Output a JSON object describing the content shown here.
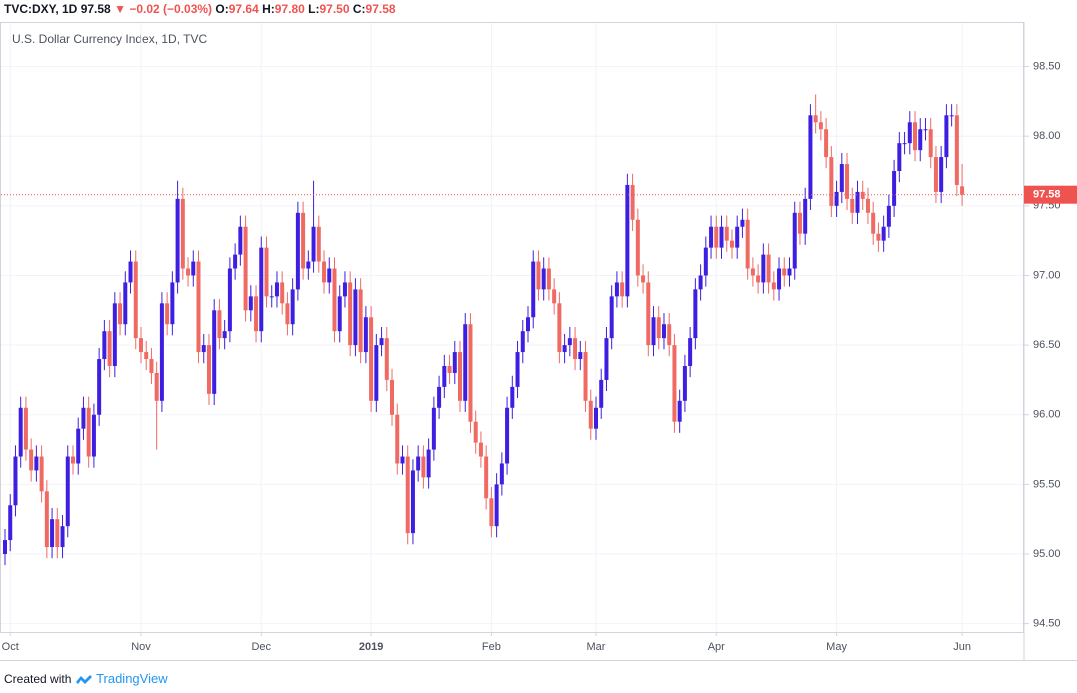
{
  "header": {
    "symbol": "TVC:DXY, 1D",
    "price": "97.58",
    "arrow": "▼",
    "change": "−0.02 (−0.03%)",
    "fields": [
      {
        "label": "O:",
        "value": "97.64"
      },
      {
        "label": "H:",
        "value": "97.80"
      },
      {
        "label": "L:",
        "value": "97.50"
      },
      {
        "label": "C:",
        "value": "97.58"
      }
    ]
  },
  "footer": {
    "text": "Created with",
    "brand": "TradingView"
  },
  "chart_data": {
    "type": "candlestick",
    "title": "U.S. Dollar Currency Index, 1D, TVC",
    "up_color": "#3c1fe0",
    "down_color": "#ef6a62",
    "grid": true,
    "ylim": [
      94.44,
      98.82
    ],
    "yticks": [
      {
        "value": 94.5,
        "label": "94.50"
      },
      {
        "value": 95,
        "label": "95.00"
      },
      {
        "value": 95.5,
        "label": "95.50"
      },
      {
        "value": 96,
        "label": "96.00"
      },
      {
        "value": 96.5,
        "label": "96.50"
      },
      {
        "value": 97,
        "label": "97.00"
      },
      {
        "value": 97.5,
        "label": "97.50"
      },
      {
        "value": 98,
        "label": "98.00"
      },
      {
        "value": 98.5,
        "label": "98.50"
      }
    ],
    "last_price": 97.58,
    "last_price_color": "#ef5350",
    "categories": [
      null,
      "Oct",
      null,
      null,
      null,
      null,
      null,
      null,
      null,
      null,
      null,
      null,
      null,
      null,
      null,
      null,
      null,
      null,
      null,
      null,
      null,
      null,
      null,
      null,
      null,
      null,
      "Nov",
      null,
      null,
      null,
      null,
      null,
      null,
      null,
      null,
      null,
      null,
      null,
      null,
      null,
      null,
      null,
      null,
      null,
      null,
      null,
      null,
      null,
      null,
      "Dec",
      null,
      null,
      null,
      null,
      null,
      null,
      null,
      null,
      null,
      null,
      null,
      null,
      null,
      null,
      null,
      null,
      null,
      null,
      null,
      null,
      "2019",
      null,
      null,
      null,
      null,
      null,
      null,
      null,
      null,
      null,
      null,
      null,
      null,
      null,
      null,
      null,
      null,
      null,
      null,
      null,
      null,
      null,
      null,
      "Feb",
      null,
      null,
      null,
      null,
      null,
      null,
      null,
      null,
      null,
      null,
      null,
      null,
      null,
      null,
      null,
      null,
      null,
      null,
      null,
      "Mar",
      null,
      null,
      null,
      null,
      null,
      null,
      null,
      null,
      null,
      null,
      null,
      null,
      null,
      null,
      null,
      null,
      null,
      null,
      null,
      null,
      null,
      null,
      "Apr",
      null,
      null,
      null,
      null,
      null,
      null,
      null,
      null,
      null,
      null,
      null,
      null,
      null,
      null,
      null,
      null,
      null,
      null,
      null,
      null,
      null,
      null,
      "May",
      null,
      null,
      null,
      null,
      null,
      null,
      null,
      null,
      null,
      null,
      null,
      null,
      null,
      null,
      null,
      null,
      null,
      null,
      null,
      null,
      null,
      null,
      null,
      "Jun"
    ],
    "ohlc": [
      [
        95.0,
        95.18,
        94.92,
        95.1
      ],
      [
        95.1,
        95.43,
        95.02,
        95.35
      ],
      [
        95.35,
        95.78,
        95.27,
        95.7
      ],
      [
        95.7,
        96.13,
        95.62,
        96.05
      ],
      [
        96.05,
        96.13,
        95.67,
        95.75
      ],
      [
        95.75,
        95.83,
        95.52,
        95.6
      ],
      [
        95.6,
        95.78,
        95.52,
        95.7
      ],
      [
        95.7,
        95.78,
        95.37,
        95.45
      ],
      [
        95.45,
        95.53,
        94.97,
        95.05
      ],
      [
        95.05,
        95.33,
        94.97,
        95.25
      ],
      [
        95.25,
        95.33,
        94.97,
        95.05
      ],
      [
        95.05,
        95.28,
        94.97,
        95.2
      ],
      [
        95.2,
        95.78,
        95.12,
        95.7
      ],
      [
        95.7,
        95.78,
        95.57,
        95.65
      ],
      [
        95.65,
        95.98,
        95.57,
        95.9
      ],
      [
        95.9,
        96.13,
        95.82,
        96.05
      ],
      [
        96.05,
        96.13,
        95.62,
        95.7
      ],
      [
        95.7,
        96.08,
        95.62,
        96.0
      ],
      [
        96.0,
        96.48,
        95.92,
        96.4
      ],
      [
        96.4,
        96.68,
        96.32,
        96.6
      ],
      [
        96.6,
        96.68,
        96.27,
        96.35
      ],
      [
        96.35,
        96.88,
        96.27,
        96.8
      ],
      [
        96.8,
        96.88,
        96.57,
        96.65
      ],
      [
        96.65,
        97.03,
        96.57,
        96.95
      ],
      [
        96.95,
        97.18,
        96.87,
        97.1
      ],
      [
        97.1,
        97.18,
        96.47,
        96.55
      ],
      [
        96.55,
        96.63,
        96.37,
        96.45
      ],
      [
        96.45,
        96.53,
        96.32,
        96.4
      ],
      [
        96.4,
        96.48,
        96.22,
        96.3
      ],
      [
        96.3,
        96.38,
        95.75,
        96.1
      ],
      [
        96.1,
        96.88,
        96.02,
        96.8
      ],
      [
        96.8,
        96.88,
        96.57,
        96.65
      ],
      [
        96.65,
        97.03,
        96.57,
        96.95
      ],
      [
        96.95,
        97.68,
        96.87,
        97.55
      ],
      [
        97.55,
        97.63,
        96.97,
        97.05
      ],
      [
        97.05,
        97.13,
        96.92,
        97.0
      ],
      [
        97.0,
        97.18,
        96.92,
        97.1
      ],
      [
        97.1,
        97.18,
        96.37,
        96.45
      ],
      [
        96.45,
        96.58,
        96.37,
        96.5
      ],
      [
        96.5,
        96.58,
        96.07,
        96.15
      ],
      [
        96.15,
        96.83,
        96.07,
        96.75
      ],
      [
        96.75,
        96.83,
        96.47,
        96.55
      ],
      [
        96.55,
        96.68,
        96.47,
        96.6
      ],
      [
        96.6,
        97.13,
        96.52,
        97.05
      ],
      [
        97.05,
        97.23,
        96.97,
        97.15
      ],
      [
        97.15,
        97.43,
        97.07,
        97.35
      ],
      [
        97.35,
        97.43,
        96.67,
        96.75
      ],
      [
        96.75,
        96.93,
        96.67,
        96.85
      ],
      [
        96.85,
        96.93,
        96.52,
        96.6
      ],
      [
        96.6,
        97.28,
        96.52,
        97.2
      ],
      [
        97.2,
        97.28,
        96.77,
        96.85
      ],
      [
        96.85,
        96.93,
        96.77,
        96.85
      ],
      [
        96.85,
        97.03,
        96.77,
        96.95
      ],
      [
        96.95,
        97.03,
        96.72,
        96.8
      ],
      [
        96.8,
        96.88,
        96.57,
        96.65
      ],
      [
        96.65,
        96.98,
        96.57,
        96.9
      ],
      [
        96.9,
        97.53,
        96.82,
        97.45
      ],
      [
        97.45,
        97.53,
        96.97,
        97.05
      ],
      [
        97.05,
        97.18,
        96.97,
        97.1
      ],
      [
        97.1,
        97.68,
        97.02,
        97.35
      ],
      [
        97.35,
        97.43,
        97.02,
        97.1
      ],
      [
        97.1,
        97.18,
        96.87,
        96.95
      ],
      [
        96.95,
        97.13,
        96.87,
        97.05
      ],
      [
        97.05,
        97.13,
        96.52,
        96.6
      ],
      [
        96.6,
        96.93,
        96.52,
        96.85
      ],
      [
        96.85,
        97.03,
        96.77,
        96.95
      ],
      [
        96.95,
        97.03,
        96.42,
        96.5
      ],
      [
        96.5,
        96.98,
        96.42,
        96.9
      ],
      [
        96.9,
        96.98,
        96.37,
        96.45
      ],
      [
        96.45,
        96.78,
        96.37,
        96.7
      ],
      [
        96.7,
        96.78,
        96.02,
        96.1
      ],
      [
        96.1,
        96.58,
        96.02,
        96.5
      ],
      [
        96.5,
        96.63,
        96.42,
        96.55
      ],
      [
        96.55,
        96.63,
        96.17,
        96.25
      ],
      [
        96.25,
        96.33,
        95.92,
        96.0
      ],
      [
        96.0,
        96.08,
        95.57,
        95.65
      ],
      [
        95.65,
        95.78,
        95.57,
        95.7
      ],
      [
        95.7,
        95.78,
        95.07,
        95.15
      ],
      [
        95.15,
        95.68,
        95.07,
        95.6
      ],
      [
        95.6,
        95.78,
        95.52,
        95.7
      ],
      [
        95.7,
        95.78,
        95.47,
        95.55
      ],
      [
        95.55,
        95.83,
        95.47,
        95.75
      ],
      [
        95.75,
        96.13,
        95.67,
        96.05
      ],
      [
        96.05,
        96.28,
        95.97,
        96.2
      ],
      [
        96.2,
        96.43,
        96.12,
        96.35
      ],
      [
        96.35,
        96.43,
        96.22,
        96.3
      ],
      [
        96.3,
        96.53,
        96.22,
        96.45
      ],
      [
        96.45,
        96.53,
        96.02,
        96.1
      ],
      [
        96.1,
        96.73,
        96.02,
        96.65
      ],
      [
        96.65,
        96.73,
        95.87,
        95.95
      ],
      [
        95.95,
        96.03,
        95.72,
        95.8
      ],
      [
        95.8,
        95.88,
        95.62,
        95.7
      ],
      [
        95.7,
        95.78,
        95.32,
        95.4
      ],
      [
        95.4,
        95.48,
        95.12,
        95.2
      ],
      [
        95.2,
        95.58,
        95.12,
        95.5
      ],
      [
        95.5,
        95.73,
        95.42,
        95.65
      ],
      [
        95.65,
        96.13,
        95.57,
        96.05
      ],
      [
        96.05,
        96.28,
        95.97,
        96.2
      ],
      [
        96.2,
        96.53,
        96.12,
        96.45
      ],
      [
        96.45,
        96.68,
        96.37,
        96.6
      ],
      [
        96.6,
        96.78,
        96.52,
        96.7
      ],
      [
        96.7,
        97.18,
        96.62,
        97.1
      ],
      [
        97.1,
        97.18,
        96.82,
        96.9
      ],
      [
        96.9,
        97.13,
        96.82,
        97.05
      ],
      [
        97.05,
        97.13,
        96.82,
        96.9
      ],
      [
        96.9,
        96.98,
        96.72,
        96.8
      ],
      [
        96.8,
        96.88,
        96.37,
        96.45
      ],
      [
        96.45,
        96.58,
        96.37,
        96.5
      ],
      [
        96.5,
        96.63,
        96.42,
        96.55
      ],
      [
        96.55,
        96.63,
        96.32,
        96.4
      ],
      [
        96.4,
        96.53,
        96.32,
        96.45
      ],
      [
        96.45,
        96.53,
        96.02,
        96.1
      ],
      [
        96.1,
        96.18,
        95.82,
        95.9
      ],
      [
        95.9,
        96.13,
        95.82,
        96.05
      ],
      [
        96.05,
        96.33,
        95.97,
        96.25
      ],
      [
        96.25,
        96.63,
        96.17,
        96.55
      ],
      [
        96.55,
        96.93,
        96.47,
        96.85
      ],
      [
        96.85,
        97.03,
        96.77,
        96.95
      ],
      [
        96.95,
        97.03,
        96.77,
        96.85
      ],
      [
        96.85,
        97.73,
        96.77,
        97.65
      ],
      [
        97.65,
        97.73,
        97.32,
        97.4
      ],
      [
        97.4,
        97.48,
        96.92,
        97.0
      ],
      [
        97.0,
        97.08,
        96.87,
        96.95
      ],
      [
        96.95,
        97.03,
        96.42,
        96.5
      ],
      [
        96.5,
        96.78,
        96.42,
        96.7
      ],
      [
        96.7,
        96.78,
        96.47,
        96.55
      ],
      [
        96.55,
        96.73,
        96.47,
        96.65
      ],
      [
        96.65,
        96.73,
        96.42,
        96.5
      ],
      [
        96.5,
        96.58,
        95.87,
        95.95
      ],
      [
        95.95,
        96.18,
        95.87,
        96.1
      ],
      [
        96.1,
        96.43,
        96.02,
        96.35
      ],
      [
        96.35,
        96.63,
        96.27,
        96.55
      ],
      [
        96.55,
        96.98,
        96.47,
        96.9
      ],
      [
        96.9,
        97.08,
        96.82,
        97.0
      ],
      [
        97.0,
        97.28,
        96.92,
        97.2
      ],
      [
        97.2,
        97.43,
        97.12,
        97.35
      ],
      [
        97.35,
        97.43,
        97.12,
        97.2
      ],
      [
        97.2,
        97.43,
        97.12,
        97.35
      ],
      [
        97.35,
        97.43,
        97.17,
        97.25
      ],
      [
        97.25,
        97.33,
        97.12,
        97.2
      ],
      [
        97.2,
        97.43,
        97.12,
        97.35
      ],
      [
        97.35,
        97.48,
        97.27,
        97.4
      ],
      [
        97.4,
        97.48,
        96.97,
        97.05
      ],
      [
        97.05,
        97.13,
        96.92,
        97.0
      ],
      [
        97.0,
        97.08,
        96.87,
        96.95
      ],
      [
        96.95,
        97.23,
        96.87,
        97.15
      ],
      [
        97.15,
        97.23,
        96.87,
        96.95
      ],
      [
        96.95,
        97.03,
        96.82,
        96.9
      ],
      [
        96.9,
        97.13,
        96.82,
        97.05
      ],
      [
        97.05,
        97.13,
        96.92,
        97.0
      ],
      [
        97.0,
        97.13,
        96.92,
        97.05
      ],
      [
        97.05,
        97.53,
        96.97,
        97.45
      ],
      [
        97.45,
        97.53,
        97.22,
        97.3
      ],
      [
        97.3,
        97.63,
        97.22,
        97.55
      ],
      [
        97.55,
        98.23,
        97.47,
        98.15
      ],
      [
        98.15,
        98.3,
        98.02,
        98.1
      ],
      [
        98.1,
        98.18,
        97.97,
        98.05
      ],
      [
        98.05,
        98.13,
        97.77,
        97.85
      ],
      [
        97.85,
        97.93,
        97.42,
        97.5
      ],
      [
        97.5,
        97.68,
        97.42,
        97.6
      ],
      [
        97.6,
        97.88,
        97.52,
        97.8
      ],
      [
        97.8,
        97.88,
        97.47,
        97.55
      ],
      [
        97.55,
        97.63,
        97.37,
        97.45
      ],
      [
        97.45,
        97.68,
        97.37,
        97.6
      ],
      [
        97.6,
        97.68,
        97.47,
        97.55
      ],
      [
        97.55,
        97.63,
        97.37,
        97.45
      ],
      [
        97.45,
        97.53,
        97.22,
        97.3
      ],
      [
        97.3,
        97.38,
        97.17,
        97.25
      ],
      [
        97.25,
        97.43,
        97.17,
        97.35
      ],
      [
        97.35,
        97.58,
        97.27,
        97.5
      ],
      [
        97.5,
        97.83,
        97.42,
        97.75
      ],
      [
        97.75,
        98.03,
        97.67,
        97.95
      ],
      [
        97.95,
        98.03,
        97.87,
        97.95
      ],
      [
        97.95,
        98.18,
        97.87,
        98.1
      ],
      [
        98.1,
        98.18,
        97.82,
        97.9
      ],
      [
        97.9,
        98.13,
        97.82,
        98.05
      ],
      [
        98.05,
        98.13,
        97.97,
        98.05
      ],
      [
        98.05,
        98.13,
        97.77,
        97.85
      ],
      [
        97.85,
        97.93,
        97.52,
        97.6
      ],
      [
        97.6,
        97.93,
        97.52,
        97.85
      ],
      [
        97.85,
        98.23,
        97.77,
        98.15
      ],
      [
        98.15,
        98.23,
        98.07,
        98.15
      ],
      [
        98.15,
        98.23,
        97.57,
        97.65
      ],
      [
        97.64,
        97.8,
        97.5,
        97.58
      ]
    ]
  }
}
